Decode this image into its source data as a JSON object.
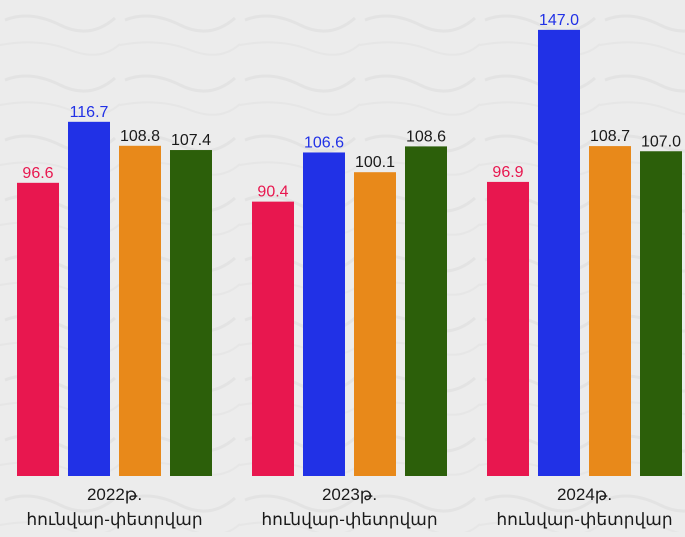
{
  "chart_data": {
    "type": "bar",
    "categories": [
      [
        "2022թ.",
        "հունվար-փետրվար"
      ],
      [
        "2023թ.",
        "հունվար-փետրվար"
      ],
      [
        "2024թ.",
        "հունվար-փետրվար"
      ]
    ],
    "series": [
      {
        "color": "#E8174F",
        "label_color": "#E8174F",
        "values": [
          96.6,
          90.4,
          96.9
        ]
      },
      {
        "color": "#2131E6",
        "label_color": "#2131E6",
        "values": [
          116.7,
          106.6,
          147.0
        ]
      },
      {
        "color": "#E8891A",
        "label_color": "#1a1a1a",
        "values": [
          108.8,
          100.1,
          108.7
        ]
      },
      {
        "color": "#2C5F0A",
        "label_color": "#1a1a1a",
        "values": [
          107.4,
          108.6,
          107.0
        ]
      }
    ],
    "value_format_decimals": 1,
    "grid": false,
    "legend": "none",
    "background": "#ececec"
  }
}
